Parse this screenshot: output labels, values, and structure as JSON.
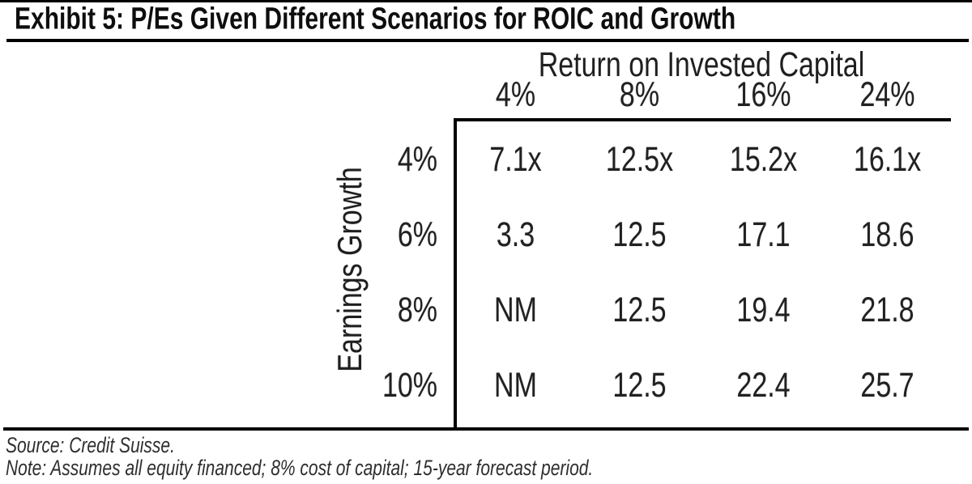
{
  "title": "Exhibit 5: P/Es Given Different Scenarios for ROIC and Growth",
  "table": {
    "col_group_label": "Return on Invested Capital",
    "row_group_label": "Earnings Growth",
    "col_headers": [
      "4%",
      "8%",
      "16%",
      "24%"
    ],
    "row_headers": [
      "4%",
      "6%",
      "8%",
      "10%"
    ],
    "rows": [
      [
        "7.1x",
        "12.5x",
        "15.2x",
        "16.1x"
      ],
      [
        "3.3",
        "12.5",
        "17.1",
        "18.6"
      ],
      [
        "NM",
        "12.5",
        "19.4",
        "21.8"
      ],
      [
        "NM",
        "12.5",
        "22.4",
        "25.7"
      ]
    ]
  },
  "footer": {
    "source": "Source: Credit Suisse.",
    "note": "Note: Assumes all equity financed; 8% cost of capital; 15-year forecast period."
  },
  "colors": {
    "text": "#1b1b1b",
    "rule": "#000000",
    "footer_text": "#2e2e2e",
    "background": "#ffffff"
  },
  "chart_data": {
    "type": "table",
    "title": "Exhibit 5: P/Es Given Different Scenarios for ROIC and Growth",
    "x_axis_label": "Return on Invested Capital",
    "y_axis_label": "Earnings Growth",
    "columns": [
      "4%",
      "8%",
      "16%",
      "24%"
    ],
    "rows": [
      "4%",
      "6%",
      "8%",
      "10%"
    ],
    "values": [
      [
        "7.1x",
        "12.5x",
        "15.2x",
        "16.1x"
      ],
      [
        "3.3",
        "12.5",
        "17.1",
        "18.6"
      ],
      [
        "NM",
        "12.5",
        "19.4",
        "21.8"
      ],
      [
        "NM",
        "12.5",
        "22.4",
        "25.7"
      ]
    ]
  }
}
